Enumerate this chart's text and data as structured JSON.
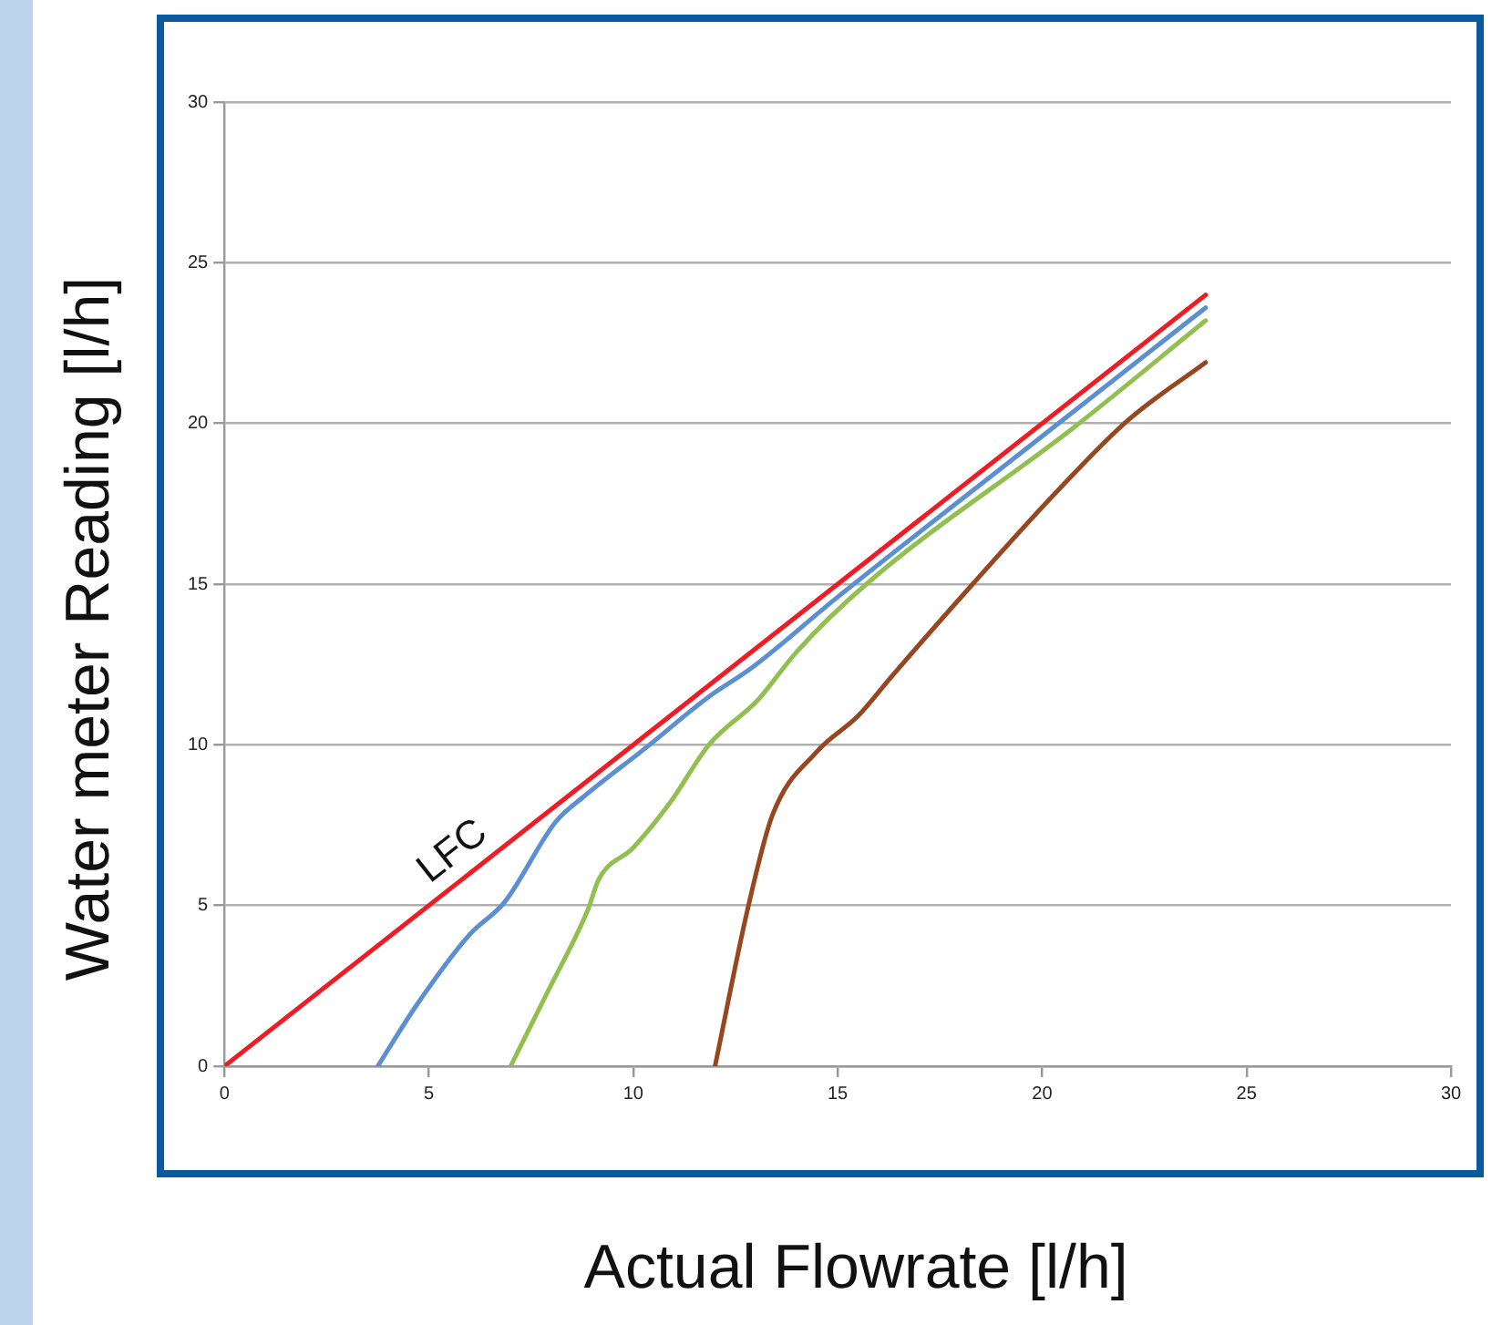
{
  "chart_data": {
    "type": "line",
    "xlabel": "Actual Flowrate [l/h]",
    "ylabel": "Water meter Reading [l/h]",
    "xlim": [
      0,
      30
    ],
    "xticks": [
      0,
      5,
      10,
      15,
      20,
      25,
      30
    ],
    "ylim": [
      0,
      30
    ],
    "yticks": [
      0,
      5,
      10,
      15,
      20,
      25,
      30
    ],
    "grid": "y",
    "legend": false,
    "marker": "none",
    "line_style": "solid",
    "series": [
      {
        "name": "LFC",
        "color": "#ee1c25",
        "x": [
          0,
          24
        ],
        "values": [
          0,
          24
        ]
      },
      {
        "color": "#5b8fd4",
        "x": [
          3.75,
          4.7,
          6.0,
          6.85,
          8.1,
          8.8,
          10.3,
          11.85,
          12.9,
          15,
          20,
          24
        ],
        "values": [
          0,
          1.9,
          4.1,
          5.1,
          7.6,
          8.4,
          9.9,
          11.5,
          12.4,
          14.6,
          19.6,
          23.6
        ]
      },
      {
        "color": "#92c050",
        "x": [
          7.0,
          7.9,
          8.9,
          9.15,
          10.0,
          10.9,
          11.85,
          13.05,
          14.0,
          15.7,
          20.8,
          24
        ],
        "values": [
          0,
          2.3,
          4.9,
          5.8,
          6.8,
          8.2,
          10.0,
          11.4,
          12.9,
          15.0,
          19.9,
          23.2
        ]
      },
      {
        "color": "#97471f",
        "x": [
          12.0,
          12.8,
          13.4,
          14.5,
          15.5,
          16.3,
          18.3,
          20.3,
          22.1,
          24
        ],
        "values": [
          0,
          4.9,
          7.8,
          9.8,
          10.9,
          12.1,
          15.0,
          17.8,
          20.1,
          21.9
        ]
      }
    ]
  }
}
